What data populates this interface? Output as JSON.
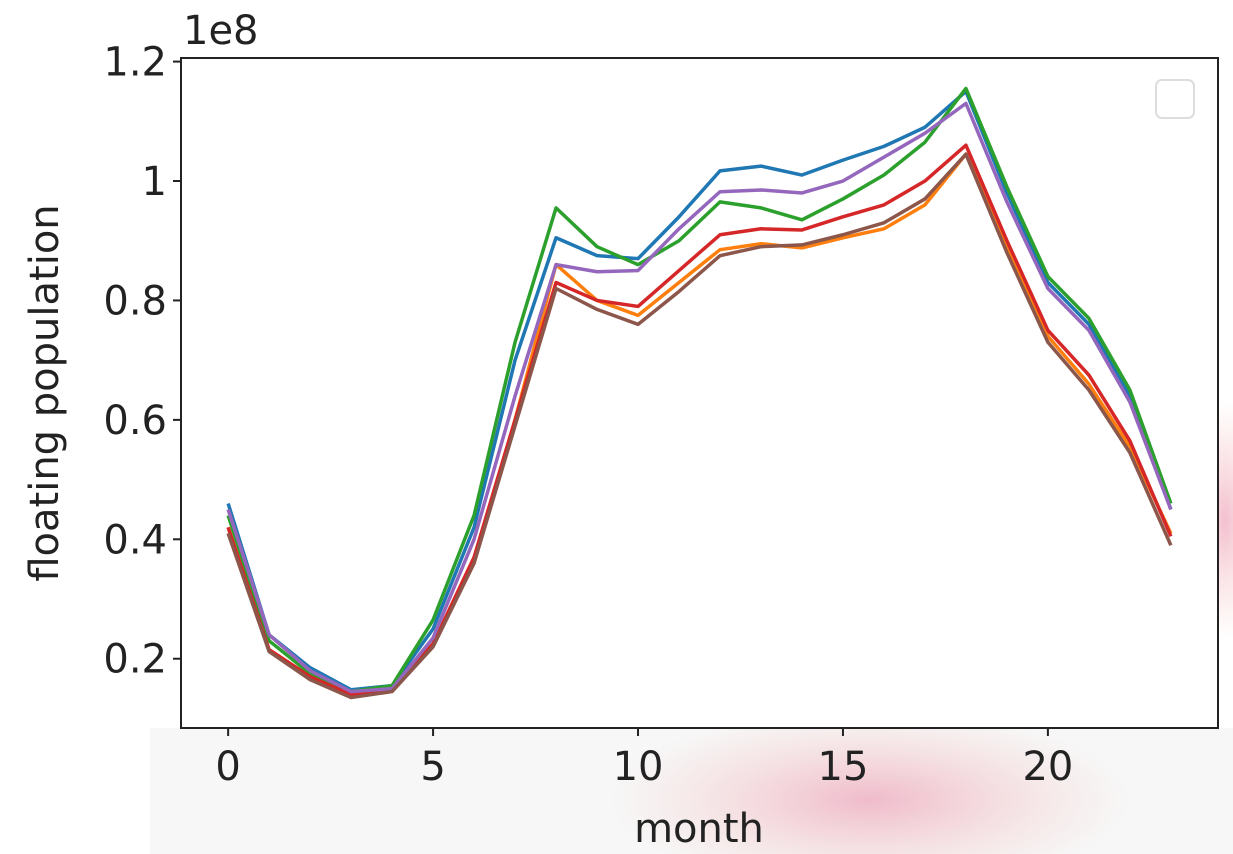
{
  "chart_data": {
    "type": "line",
    "x_label": "month",
    "y_label": "floating population",
    "y_offset_text": "1e8",
    "x": [
      0,
      1,
      2,
      3,
      4,
      5,
      6,
      7,
      8,
      9,
      10,
      11,
      12,
      13,
      14,
      15,
      16,
      17,
      18,
      19,
      20,
      21,
      22,
      23
    ],
    "xlim": [
      -1.15,
      24.15
    ],
    "xticks": [
      0,
      5,
      10,
      15,
      20
    ],
    "ylim": [
      0.084,
      1.206
    ],
    "yticks": [
      0.2,
      0.4,
      0.6,
      0.8,
      1.0,
      1.2
    ],
    "series": [
      {
        "color": "#1f77b4",
        "values": [
          0.46,
          0.24,
          0.185,
          0.148,
          0.155,
          0.25,
          0.42,
          0.7,
          0.905,
          0.875,
          0.87,
          0.94,
          1.017,
          1.025,
          1.01,
          1.035,
          1.058,
          1.09,
          1.15,
          0.98,
          0.83,
          0.76,
          0.64,
          0.45
        ]
      },
      {
        "color": "#ff7f0e",
        "values": [
          0.42,
          0.215,
          0.17,
          0.138,
          0.148,
          0.225,
          0.36,
          0.6,
          0.86,
          0.8,
          0.775,
          0.83,
          0.885,
          0.895,
          0.888,
          0.905,
          0.92,
          0.96,
          1.045,
          0.89,
          0.74,
          0.66,
          0.555,
          0.41
        ]
      },
      {
        "color": "#2ca02c",
        "values": [
          0.44,
          0.23,
          0.175,
          0.145,
          0.155,
          0.265,
          0.44,
          0.73,
          0.955,
          0.89,
          0.86,
          0.9,
          0.965,
          0.955,
          0.935,
          0.97,
          1.01,
          1.065,
          1.155,
          0.99,
          0.84,
          0.77,
          0.65,
          0.46
        ]
      },
      {
        "color": "#d62728",
        "values": [
          0.42,
          0.215,
          0.17,
          0.14,
          0.15,
          0.225,
          0.37,
          0.6,
          0.83,
          0.8,
          0.79,
          0.85,
          0.91,
          0.92,
          0.918,
          0.94,
          0.96,
          1.0,
          1.06,
          0.9,
          0.75,
          0.675,
          0.565,
          0.405
        ]
      },
      {
        "color": "#9467bd",
        "values": [
          0.45,
          0.24,
          0.18,
          0.145,
          0.15,
          0.235,
          0.4,
          0.64,
          0.86,
          0.848,
          0.85,
          0.92,
          0.982,
          0.985,
          0.98,
          1.0,
          1.04,
          1.08,
          1.13,
          0.965,
          0.82,
          0.75,
          0.63,
          0.45
        ]
      },
      {
        "color": "#8c564b",
        "values": [
          0.41,
          0.212,
          0.165,
          0.135,
          0.145,
          0.22,
          0.36,
          0.59,
          0.82,
          0.785,
          0.76,
          0.815,
          0.875,
          0.89,
          0.893,
          0.91,
          0.93,
          0.97,
          1.045,
          0.88,
          0.73,
          0.65,
          0.545,
          0.39
        ]
      }
    ]
  }
}
